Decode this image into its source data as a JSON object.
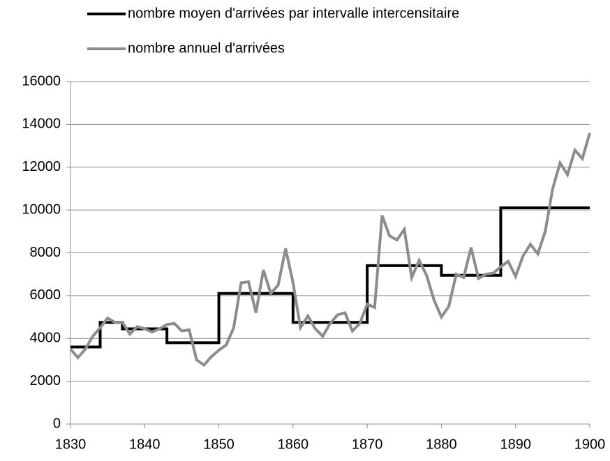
{
  "chart_data": {
    "type": "line",
    "series": [
      {
        "name": "nombre moyen d'arrivées par intervalle intercensitaire",
        "color": "#000000",
        "step": true,
        "x": [
          1830,
          1834,
          1837,
          1843,
          1850,
          1860,
          1870,
          1880,
          1888,
          1900
        ],
        "values": [
          3600,
          4750,
          4450,
          3800,
          6100,
          4750,
          7400,
          6950,
          10100,
          10100
        ]
      },
      {
        "name": "nombre annuel d'arrivées",
        "color": "#8c8c8c",
        "x": [
          1830,
          1831,
          1832,
          1833,
          1834,
          1835,
          1836,
          1837,
          1838,
          1839,
          1840,
          1841,
          1842,
          1843,
          1844,
          1845,
          1846,
          1847,
          1848,
          1849,
          1850,
          1851,
          1852,
          1853,
          1854,
          1855,
          1856,
          1857,
          1858,
          1859,
          1860,
          1861,
          1862,
          1863,
          1864,
          1865,
          1866,
          1867,
          1868,
          1869,
          1870,
          1871,
          1872,
          1873,
          1874,
          1875,
          1876,
          1877,
          1878,
          1879,
          1880,
          1881,
          1882,
          1883,
          1884,
          1885,
          1886,
          1887,
          1888,
          1889,
          1890,
          1891,
          1892,
          1893,
          1894,
          1895,
          1896,
          1897,
          1898,
          1899,
          1900
        ],
        "values": [
          3500,
          3100,
          3500,
          4100,
          4500,
          4950,
          4750,
          4750,
          4200,
          4550,
          4450,
          4300,
          4450,
          4650,
          4700,
          4350,
          4400,
          3000,
          2750,
          3150,
          3450,
          3700,
          4500,
          6600,
          6650,
          5200,
          7200,
          6100,
          6500,
          8200,
          6600,
          4500,
          5050,
          4450,
          4100,
          4700,
          5100,
          5200,
          4350,
          4700,
          5600,
          5450,
          9750,
          8800,
          8600,
          9100,
          6850,
          7650,
          6950,
          5800,
          5000,
          5500,
          7000,
          6850,
          8250,
          6800,
          7000,
          7050,
          7350,
          7600,
          6900,
          7850,
          8400,
          7950,
          9000,
          11000,
          12200,
          11650,
          12800,
          12400,
          13600
        ]
      }
    ],
    "xlim": [
      1830,
      1900
    ],
    "xticks": [
      1830,
      1840,
      1850,
      1860,
      1870,
      1880,
      1890,
      1900
    ],
    "ylim": [
      0,
      16000
    ],
    "yticks": [
      0,
      2000,
      4000,
      6000,
      8000,
      10000,
      12000,
      14000,
      16000
    ],
    "grid": true,
    "legend": "top"
  }
}
